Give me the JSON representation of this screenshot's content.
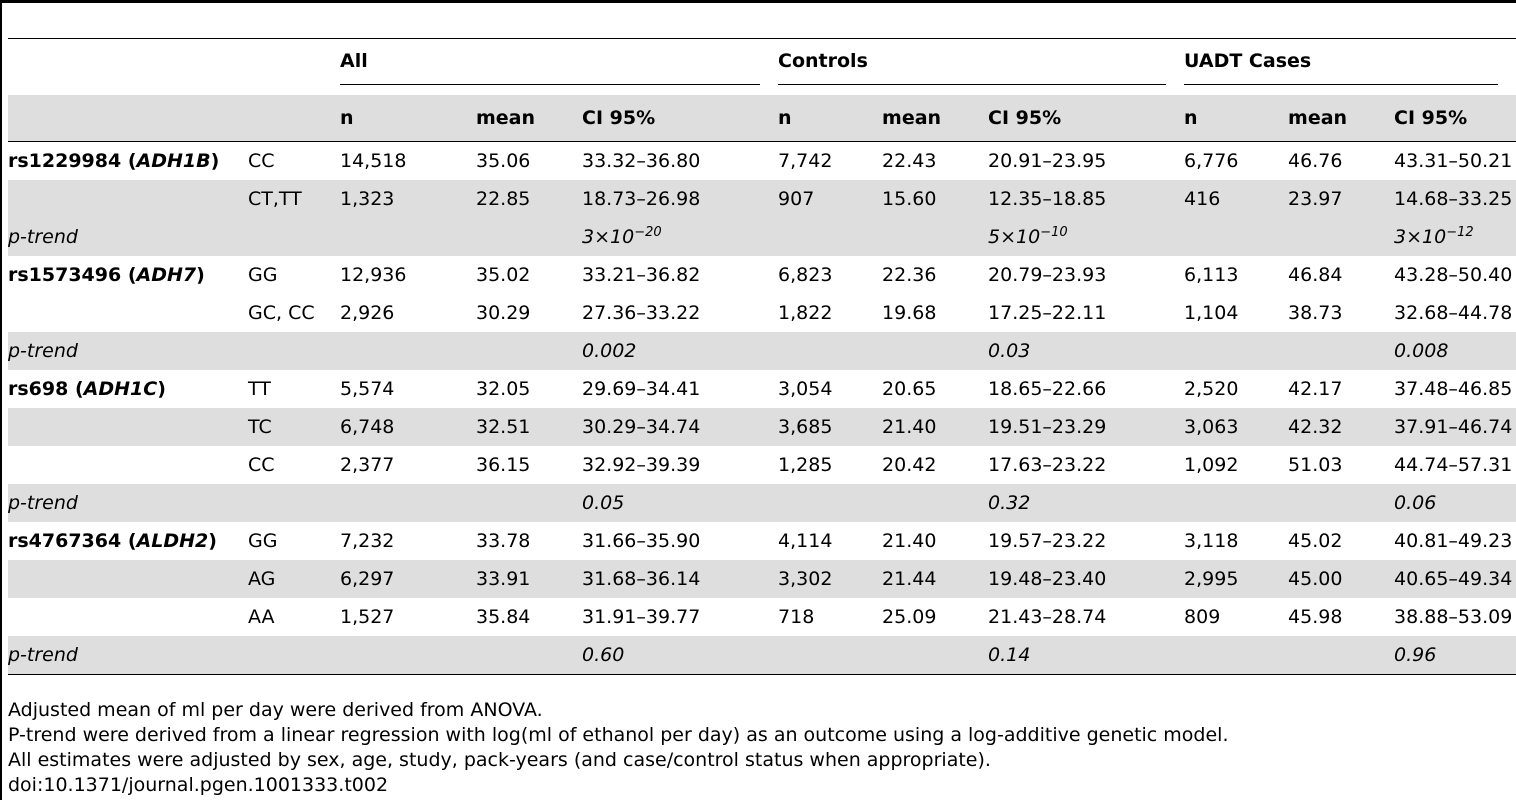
{
  "header": {
    "groups": [
      "All",
      "Controls",
      "UADT Cases"
    ],
    "subcolumns": [
      "n",
      "mean",
      "CI 95%"
    ]
  },
  "rows": [
    {
      "type": "data",
      "snp": "rs1229984",
      "gene": "ADH1B",
      "genotype": "CC",
      "all": [
        "14,518",
        "35.06",
        "33.32–36.80"
      ],
      "controls": [
        "7,742",
        "22.43",
        "20.91–23.95"
      ],
      "cases": [
        "6,776",
        "46.76",
        "43.31–50.21"
      ]
    },
    {
      "type": "data",
      "snp": "",
      "gene": "",
      "genotype": "CT,TT",
      "all": [
        "1,323",
        "22.85",
        "18.73–26.98"
      ],
      "controls": [
        "907",
        "15.60",
        "12.35–18.85"
      ],
      "cases": [
        "416",
        "23.97",
        "14.68–33.25"
      ]
    },
    {
      "type": "ptrend",
      "label": "p-trend",
      "all": [
        "3×10",
        "−20"
      ],
      "controls": [
        "5×10",
        "−10"
      ],
      "cases": [
        "3×10",
        "−12"
      ]
    },
    {
      "type": "data",
      "snp": "rs1573496",
      "gene": "ADH7",
      "genotype": "GG",
      "all": [
        "12,936",
        "35.02",
        "33.21–36.82"
      ],
      "controls": [
        "6,823",
        "22.36",
        "20.79–23.93"
      ],
      "cases": [
        "6,113",
        "46.84",
        "43.28–50.40"
      ]
    },
    {
      "type": "data",
      "snp": "",
      "gene": "",
      "genotype": "GC, CC",
      "all": [
        "2,926",
        "30.29",
        "27.36–33.22"
      ],
      "controls": [
        "1,822",
        "19.68",
        "17.25–22.11"
      ],
      "cases": [
        "1,104",
        "38.73",
        "32.68–44.78"
      ]
    },
    {
      "type": "ptrend",
      "label": "p-trend",
      "all": [
        "0.002",
        ""
      ],
      "controls": [
        "0.03",
        ""
      ],
      "cases": [
        "0.008",
        ""
      ]
    },
    {
      "type": "data",
      "snp": "rs698",
      "gene": "ADH1C",
      "genotype": "TT",
      "all": [
        "5,574",
        "32.05",
        "29.69–34.41"
      ],
      "controls": [
        "3,054",
        "20.65",
        "18.65–22.66"
      ],
      "cases": [
        "2,520",
        "42.17",
        "37.48–46.85"
      ]
    },
    {
      "type": "data",
      "snp": "",
      "gene": "",
      "genotype": "TC",
      "all": [
        "6,748",
        "32.51",
        "30.29–34.74"
      ],
      "controls": [
        "3,685",
        "21.40",
        "19.51–23.29"
      ],
      "cases": [
        "3,063",
        "42.32",
        "37.91–46.74"
      ]
    },
    {
      "type": "data",
      "snp": "",
      "gene": "",
      "genotype": "CC",
      "all": [
        "2,377",
        "36.15",
        "32.92–39.39"
      ],
      "controls": [
        "1,285",
        "20.42",
        "17.63–23.22"
      ],
      "cases": [
        "1,092",
        "51.03",
        "44.74–57.31"
      ]
    },
    {
      "type": "ptrend",
      "label": "p-trend",
      "all": [
        "0.05",
        ""
      ],
      "controls": [
        "0.32",
        ""
      ],
      "cases": [
        "0.06",
        ""
      ]
    },
    {
      "type": "data",
      "snp": "rs4767364",
      "gene": "ALDH2",
      "genotype": "GG",
      "all": [
        "7,232",
        "33.78",
        "31.66–35.90"
      ],
      "controls": [
        "4,114",
        "21.40",
        "19.57–23.22"
      ],
      "cases": [
        "3,118",
        "45.02",
        "40.81–49.23"
      ]
    },
    {
      "type": "data",
      "snp": "",
      "gene": "",
      "genotype": "AG",
      "all": [
        "6,297",
        "33.91",
        "31.68–36.14"
      ],
      "controls": [
        "3,302",
        "21.44",
        "19.48–23.40"
      ],
      "cases": [
        "2,995",
        "45.00",
        "40.65–49.34"
      ]
    },
    {
      "type": "data",
      "snp": "",
      "gene": "",
      "genotype": "AA",
      "all": [
        "1,527",
        "35.84",
        "31.91–39.77"
      ],
      "controls": [
        "718",
        "25.09",
        "21.43–28.74"
      ],
      "cases": [
        "809",
        "45.98",
        "38.88–53.09"
      ]
    },
    {
      "type": "ptrend",
      "label": "p-trend",
      "all": [
        "0.60",
        ""
      ],
      "controls": [
        "0.14",
        ""
      ],
      "cases": [
        "0.96",
        ""
      ]
    }
  ],
  "notes": [
    "Adjusted mean of ml per day were derived from ANOVA.",
    "P-trend were derived from a linear regression with log(ml of ethanol per day) as an outcome using a log-additive genetic model.",
    "All estimates were adjusted by sex, age, study, pack-years (and case/control status when appropriate).",
    "doi:10.1371/journal.pgen.1001333.t002"
  ]
}
